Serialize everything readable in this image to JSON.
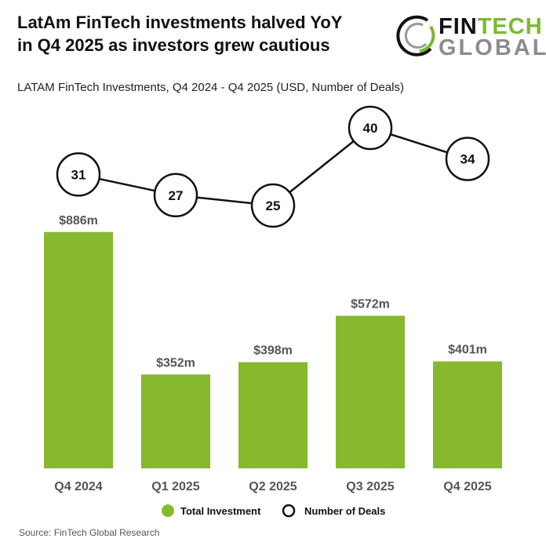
{
  "title_lines": [
    "LatAm FinTech investments halved YoY",
    "in Q4 2025 as investors grew cautious"
  ],
  "logo": {
    "line1_a": "FIN",
    "line1_b": "TECH",
    "line2": "GLOBAL"
  },
  "source": "Source: FinTech Global Research",
  "colors": {
    "bar": "#86b92d",
    "line": "#111111",
    "text": "#555555"
  },
  "chart_data": {
    "type": "bar",
    "title": "LATAM FinTech Investments, Q4 2024 - Q4 2025 (USD, Number of Deals)",
    "categories": [
      "Q4 2024",
      "Q1 2025",
      "Q2 2025",
      "Q3 2025",
      "Q4 2025"
    ],
    "series": [
      {
        "name": "Total Investment",
        "type": "bar",
        "unit": "USD m",
        "values": [
          886,
          352,
          398,
          572,
          401
        ],
        "labels": [
          "$886m",
          "$352m",
          "$398m",
          "$572m",
          "$401m"
        ]
      },
      {
        "name": "Number of Deals",
        "type": "line",
        "values": [
          31,
          27,
          25,
          40,
          34
        ]
      }
    ],
    "legend": "bottom",
    "grid": false
  }
}
